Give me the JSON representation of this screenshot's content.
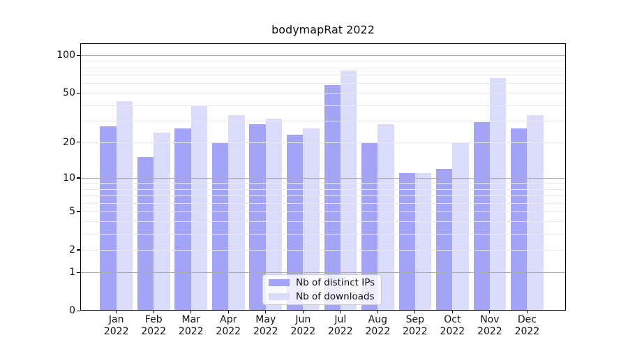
{
  "colors": {
    "distinct_ips": "#a4a4f6",
    "downloads": "#dbdbfa",
    "grid_major": "#ababab",
    "grid_minor": "#e8e8e8",
    "spine": "#000000",
    "legend_border": "#cccccc"
  },
  "chart_data": {
    "type": "bar",
    "title": "bodymapRat 2022",
    "categories": [
      "Jan",
      "Feb",
      "Mar",
      "Apr",
      "May",
      "Jun",
      "Jul",
      "Aug",
      "Sep",
      "Oct",
      "Nov",
      "Dec"
    ],
    "year": "2022",
    "series": [
      {
        "name": "Nb of distinct IPs",
        "color_key": "distinct_ips",
        "values": [
          27,
          15,
          26,
          20,
          28,
          23,
          58,
          20,
          11,
          12,
          29,
          26
        ]
      },
      {
        "name": "Nb of downloads",
        "color_key": "downloads",
        "values": [
          43,
          24,
          40,
          33,
          31,
          26,
          76,
          28,
          11,
          20,
          66,
          33
        ]
      }
    ],
    "xlabel": "",
    "ylabel": "",
    "yscale": "log1p",
    "ylim": [
      0,
      124
    ],
    "ytick_values": [
      100,
      50,
      20,
      10,
      5,
      2,
      1,
      0
    ],
    "ytick_labels": [
      "100",
      "50",
      "20",
      "10",
      "5",
      "2",
      "1",
      "0"
    ],
    "grid_major_values": [
      1,
      10,
      100
    ],
    "grid_minor_values": [
      2,
      3,
      4,
      5,
      6,
      7,
      8,
      9,
      20,
      30,
      40,
      50,
      60,
      70,
      80,
      90
    ],
    "grid": "horizontal",
    "legend_position": "lower center"
  }
}
